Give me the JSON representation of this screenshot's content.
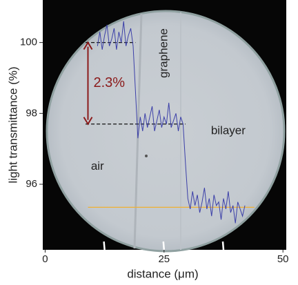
{
  "chart_data": {
    "type": "line",
    "x_label": "distance (μm)",
    "y_label": "light  transmittance  (%)",
    "xlim": [
      -0.5,
      50.7
    ],
    "ylim": [
      94.15,
      101.2
    ],
    "xticks": [
      0,
      25,
      50
    ],
    "yticks": [
      96,
      98,
      100
    ],
    "xminorticks": [
      12.5,
      25,
      37.5
    ],
    "series": [
      {
        "color": "#3b3fa8",
        "x": [
          11,
          11.5,
          12,
          12.5,
          13,
          13.5,
          14,
          14.5,
          15,
          15.5,
          16,
          16.5,
          17,
          17.5,
          18,
          18.5,
          19,
          19.5,
          20,
          20.5,
          21,
          21.5,
          22,
          22.5,
          23,
          23.5,
          24,
          24.5,
          25,
          25.5,
          26,
          26.5,
          27,
          27.5,
          28,
          28.5,
          29,
          29.5,
          30,
          30.5,
          31,
          31.5,
          32,
          32.5,
          33,
          33.5,
          34,
          34.5,
          35,
          35.5,
          36,
          36.5,
          37,
          37.5,
          38,
          38.5,
          39,
          39.5,
          40,
          40.5,
          41,
          41.5,
          42
        ],
        "values": [
          99.9,
          100.3,
          99.8,
          100.2,
          100.5,
          99.9,
          100.1,
          100.4,
          99.8,
          100.3,
          100.0,
          100.6,
          99.9,
          100.2,
          100.4,
          99.9,
          98.6,
          97.3,
          97.9,
          97.5,
          98.0,
          97.6,
          97.9,
          98.2,
          97.5,
          97.8,
          98.1,
          97.6,
          97.9,
          97.7,
          98.3,
          97.6,
          97.8,
          98.0,
          97.5,
          97.9,
          97.7,
          96.6,
          95.6,
          95.3,
          95.8,
          95.4,
          95.7,
          95.2,
          95.5,
          95.9,
          95.3,
          95.6,
          95.1,
          95.7,
          95.4,
          95.5,
          95.0,
          95.6,
          95.3,
          95.8,
          95.2,
          95.4,
          94.9,
          95.5,
          95.3,
          95.1,
          95.4
        ]
      }
    ],
    "reference_lines": [
      {
        "y": 100,
        "x": [
          8.5,
          19
        ],
        "color": "#111111",
        "dashed": true
      },
      {
        "y": 97.7,
        "x": [
          8.5,
          29.5
        ],
        "color": "#111111",
        "dashed": true
      },
      {
        "y": 95.35,
        "x": [
          9,
          44
        ],
        "color": "#f0b030",
        "dashed": false
      }
    ],
    "arrow": {
      "x": 9,
      "y": [
        100,
        97.7
      ],
      "color": "#8b1a1a",
      "label": "2.3%"
    },
    "annotations": [
      {
        "text": "graphene",
        "x": 25,
        "y": 99.7,
        "rotate": true
      },
      {
        "text": "bilayer",
        "x": 38.5,
        "y": 97.5,
        "rotate": false
      },
      {
        "text": "air",
        "x": 11,
        "y": 96.5,
        "rotate": false
      }
    ]
  }
}
